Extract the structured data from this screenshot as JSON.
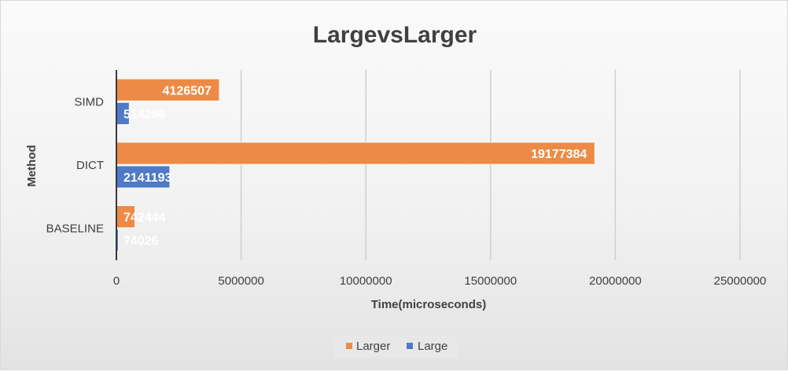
{
  "chart_data": {
    "type": "bar",
    "orientation": "horizontal",
    "title": "LargevsLarger",
    "xlabel": "Time(microseconds)",
    "ylabel": "Method",
    "categories": [
      "SIMD",
      "DICT",
      "BASELINE"
    ],
    "series": [
      {
        "name": "Larger",
        "values": [
          4126507,
          19177384,
          742444
        ],
        "color": "#ED8B46"
      },
      {
        "name": "Large",
        "values": [
          514296,
          2141193,
          74026
        ],
        "color": "#4F7AC7"
      }
    ],
    "xlim": [
      0,
      25000000
    ],
    "xticks": [
      "0",
      "5000000",
      "10000000",
      "15000000",
      "20000000",
      "25000000"
    ],
    "grid": "vertical",
    "legend_position": "bottom",
    "data_labels": true
  }
}
